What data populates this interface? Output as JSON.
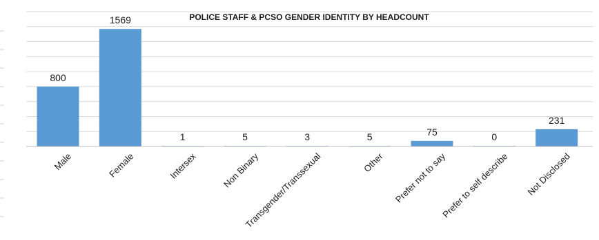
{
  "chart_data": {
    "type": "bar",
    "title": "POLICE STAFF & PCSO GENDER IDENTITY BY HEADCOUNT",
    "categories": [
      "Male",
      "Female",
      "Intersex",
      "Non Binary",
      "Transgender/Transsexual",
      "Other",
      "Prefer not to say",
      "Prefer to self describe",
      "Not Disclosed"
    ],
    "values": [
      800,
      1569,
      1,
      5,
      3,
      5,
      75,
      0,
      231
    ],
    "xlabel": "",
    "ylabel": "",
    "ylim": [
      0,
      1800
    ],
    "grid": true,
    "legend": "none",
    "bar_color": "#5b9bd5"
  }
}
